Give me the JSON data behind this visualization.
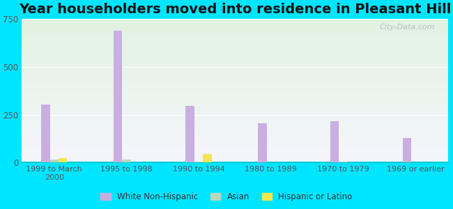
{
  "title": "Year householders moved into residence in Pleasant Hill",
  "categories": [
    "1999 to March\n2000",
    "1995 to 1998",
    "1990 to 1994",
    "1980 to 1989",
    "1970 to 1979",
    "1969 or earlier"
  ],
  "white_non_hispanic": [
    305,
    690,
    295,
    205,
    215,
    130
  ],
  "asian": [
    15,
    15,
    5,
    0,
    5,
    0
  ],
  "hispanic_or_latino": [
    25,
    0,
    45,
    0,
    0,
    0
  ],
  "white_color": "#c9aee0",
  "asian_color": "#b8d8c0",
  "hispanic_color": "#f0e850",
  "background_outer": "#00e5ff",
  "ylim": [
    0,
    750
  ],
  "yticks": [
    0,
    250,
    500,
    750
  ],
  "watermark": "City-Data.com",
  "title_fontsize": 14,
  "bar_width": 0.12
}
